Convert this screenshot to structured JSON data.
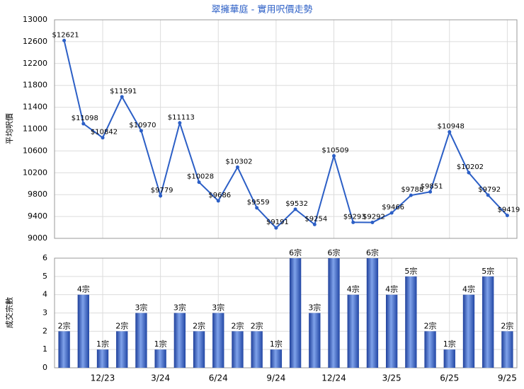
{
  "chart_data": [
    {
      "type": "line",
      "title": "翠擁華庭 - 實用呎價走勢",
      "ylabel": "平均呎價",
      "color": "#2c5fc6",
      "values": [
        12621,
        11098,
        10842,
        11591,
        10970,
        9779,
        11113,
        10028,
        9686,
        10302,
        9559,
        9191,
        9532,
        9254,
        10509,
        9293,
        9292,
        9466,
        9788,
        9851,
        10948,
        10202,
        9792,
        9419
      ],
      "value_labels": [
        "$12621",
        "$11098",
        "$10842",
        "$11591",
        "$10970",
        "$9779",
        "$11113",
        "$10028",
        "$9686",
        "$10302",
        "$9559",
        "$9191",
        "$9532",
        "$9254",
        "$10509",
        "$9293",
        "$9292",
        "$9466",
        "$9788",
        "$9851",
        "$10948",
        "$10202",
        "$9792",
        "$9419"
      ],
      "ylim": [
        9000,
        13000
      ],
      "yticks": [
        9000,
        9400,
        9800,
        10200,
        10600,
        11000,
        11400,
        11800,
        12200,
        12600,
        13000
      ],
      "grid": true
    },
    {
      "type": "bar",
      "ylabel": "成交宗數",
      "color": "#3a67c8",
      "categories": [
        null,
        null,
        "12/23",
        null,
        null,
        "3/24",
        null,
        null,
        "6/24",
        null,
        null,
        "9/24",
        null,
        null,
        "12/24",
        null,
        null,
        "3/25",
        null,
        null,
        "6/25",
        null,
        null,
        "9/25"
      ],
      "values": [
        2,
        4,
        1,
        2,
        3,
        1,
        3,
        2,
        3,
        2,
        2,
        1,
        6,
        3,
        6,
        4,
        6,
        4,
        5,
        2,
        1,
        4,
        5,
        2
      ],
      "value_labels": [
        "2宗",
        "4宗",
        "1宗",
        "2宗",
        "3宗",
        "1宗",
        "3宗",
        "2宗",
        "3宗",
        "2宗",
        "2宗",
        "1宗",
        "6宗",
        "3宗",
        "6宗",
        "4宗",
        "6宗",
        "4宗",
        "5宗",
        "2宗",
        "1宗",
        "4宗",
        "5宗",
        "2宗"
      ],
      "ylim": [
        0,
        6
      ],
      "yticks": [
        0,
        1,
        2,
        3,
        4,
        5,
        6
      ],
      "grid": true
    }
  ]
}
